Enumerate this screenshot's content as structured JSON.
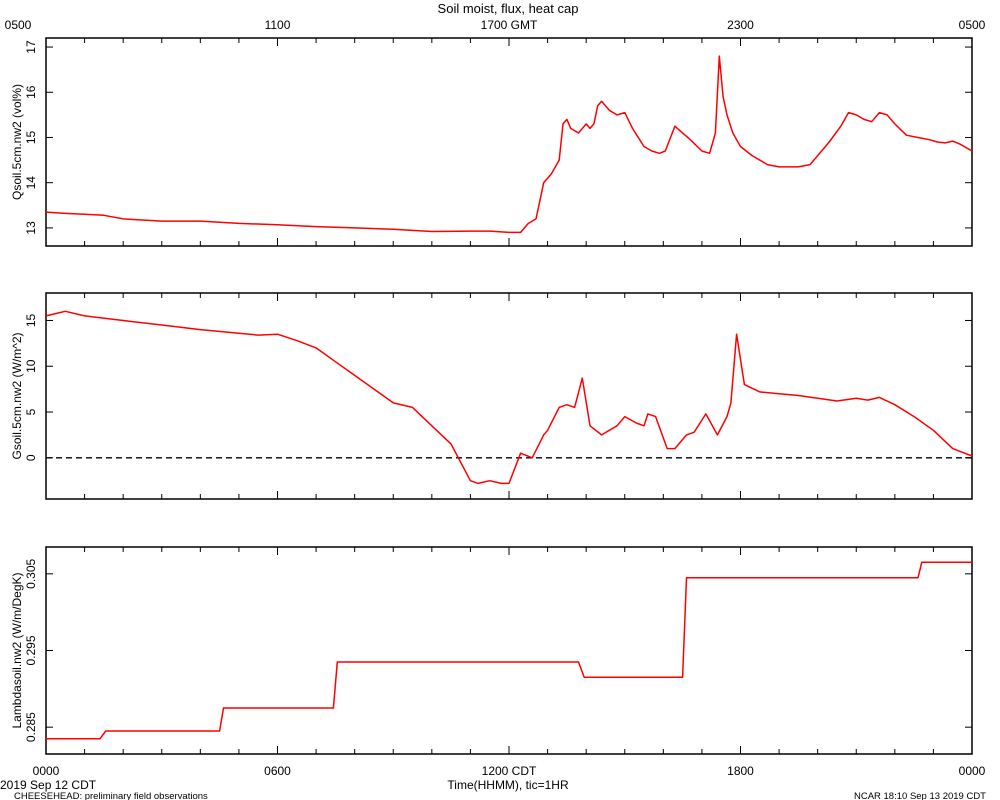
{
  "title": "Soil moist, flux, heat cap",
  "top_axis_ticks": [
    "0500",
    "1100",
    "1700 GMT",
    "2300",
    "0500"
  ],
  "bottom_axis_ticks": [
    "0000",
    "0600",
    "1200 CDT",
    "1800",
    "0000"
  ],
  "xlabel": "Time(HHMM), tic=1HR",
  "date_label": "2019 Sep 12 CDT",
  "footer_left": "CHEESEHEAD: preliminary field observations",
  "footer_right": "NCAR 18:10 Sep 13 2019 CDT",
  "colors": {
    "series": "#ff0000",
    "axes": "#000000",
    "zero_line": "#000000"
  },
  "chart_data": [
    {
      "type": "line",
      "ylabel": "Qsoil.5cm.nw2 (vol%)",
      "x_unit": "hours since 0000 CDT",
      "xlim": [
        0,
        24
      ],
      "ylim": [
        12.6,
        17.2
      ],
      "yticks": [
        "13",
        "14",
        "15",
        "16",
        "17"
      ],
      "ytick_values": [
        13,
        14,
        15,
        16,
        17
      ],
      "series": [
        {
          "x": [
            0.0,
            0.5,
            1.0,
            1.5,
            2.0,
            3.0,
            4.0,
            5.0,
            6.0,
            7.0,
            8.0,
            9.0,
            10.0,
            11.0,
            11.5,
            12.0,
            12.3,
            12.5,
            12.7,
            12.9,
            13.1,
            13.3,
            13.4,
            13.5,
            13.6,
            13.8,
            14.0,
            14.1,
            14.2,
            14.3,
            14.4,
            14.6,
            14.8,
            15.0,
            15.2,
            15.5,
            15.7,
            15.9,
            16.05,
            16.3,
            16.7,
            17.0,
            17.2,
            17.35,
            17.45,
            17.55,
            17.65,
            17.8,
            18.0,
            18.3,
            18.7,
            19.0,
            19.5,
            19.8,
            20.0,
            20.3,
            20.6,
            20.8,
            21.0,
            21.2,
            21.4,
            21.6,
            21.8,
            22.0,
            22.3,
            22.6,
            22.9,
            23.1,
            23.3,
            23.5,
            23.7,
            24.0
          ],
          "y": [
            13.35,
            13.32,
            13.3,
            13.28,
            13.2,
            13.15,
            13.15,
            13.1,
            13.07,
            13.03,
            13.0,
            12.97,
            12.92,
            12.93,
            12.93,
            12.9,
            12.9,
            13.1,
            13.2,
            14.0,
            14.2,
            14.5,
            15.3,
            15.4,
            15.2,
            15.1,
            15.3,
            15.2,
            15.3,
            15.7,
            15.8,
            15.6,
            15.5,
            15.55,
            15.2,
            14.8,
            14.7,
            14.65,
            14.7,
            15.25,
            14.95,
            14.7,
            14.65,
            15.1,
            16.8,
            15.9,
            15.5,
            15.1,
            14.8,
            14.6,
            14.4,
            14.35,
            14.35,
            14.4,
            14.6,
            14.9,
            15.25,
            15.55,
            15.5,
            15.4,
            15.35,
            15.55,
            15.5,
            15.3,
            15.05,
            15.0,
            14.95,
            14.9,
            14.88,
            14.92,
            14.85,
            14.7
          ]
        }
      ]
    },
    {
      "type": "line",
      "ylabel": "Gsoil.5cm.nw2 (W/m^2)",
      "x_unit": "hours since 0000 CDT",
      "xlim": [
        0,
        24
      ],
      "ylim": [
        -4.5,
        18
      ],
      "yticks": [
        "0",
        "5",
        "10",
        "15"
      ],
      "ytick_values": [
        0,
        5,
        10,
        15
      ],
      "zero_line": true,
      "series": [
        {
          "x": [
            0.0,
            0.3,
            0.5,
            1.0,
            2.0,
            3.0,
            4.0,
            5.0,
            5.5,
            6.0,
            6.5,
            7.0,
            7.5,
            8.0,
            8.5,
            9.0,
            9.5,
            10.0,
            10.5,
            11.0,
            11.2,
            11.5,
            11.8,
            12.0,
            12.3,
            12.6,
            12.9,
            13.0,
            13.3,
            13.5,
            13.7,
            13.9,
            14.1,
            14.4,
            14.8,
            15.0,
            15.3,
            15.5,
            15.6,
            15.8,
            16.1,
            16.3,
            16.6,
            16.8,
            17.1,
            17.4,
            17.65,
            17.75,
            17.9,
            18.1,
            18.5,
            19.0,
            19.5,
            20.0,
            20.5,
            21.0,
            21.3,
            21.6,
            22.0,
            22.5,
            23.0,
            23.5,
            24.0
          ],
          "y": [
            15.5,
            15.8,
            16.0,
            15.5,
            15.0,
            14.5,
            14.0,
            13.6,
            13.4,
            13.5,
            12.8,
            12.0,
            10.5,
            9.0,
            7.5,
            6.0,
            5.5,
            3.5,
            1.5,
            -2.5,
            -2.8,
            -2.5,
            -2.8,
            -2.8,
            0.5,
            0.0,
            2.5,
            3.0,
            5.5,
            5.8,
            5.5,
            8.7,
            3.5,
            2.5,
            3.5,
            4.5,
            3.8,
            3.5,
            4.8,
            4.5,
            1.0,
            1.0,
            2.5,
            2.8,
            4.8,
            2.5,
            4.5,
            6.0,
            13.5,
            8.0,
            7.2,
            7.0,
            6.8,
            6.5,
            6.2,
            6.5,
            6.3,
            6.6,
            5.8,
            4.5,
            3.0,
            1.0,
            0.2
          ]
        }
      ]
    },
    {
      "type": "line",
      "ylabel": "Lambdasoil.nw2 (W/m/DegK)",
      "x_unit": "hours since 0000 CDT",
      "xlim": [
        0,
        24
      ],
      "ylim": [
        0.2815,
        0.3085
      ],
      "yticks": [
        "0.285",
        "0.295",
        "0.305"
      ],
      "ytick_values": [
        0.285,
        0.295,
        0.305
      ],
      "series": [
        {
          "x": [
            0.0,
            1.4,
            1.55,
            4.5,
            4.6,
            7.45,
            7.55,
            13.8,
            13.95,
            16.5,
            16.6,
            22.6,
            22.7,
            24.0
          ],
          "y": [
            0.2835,
            0.2835,
            0.2845,
            0.2845,
            0.2875,
            0.2875,
            0.2935,
            0.2935,
            0.2915,
            0.2915,
            0.3045,
            0.3045,
            0.3065,
            0.3065
          ]
        }
      ]
    }
  ]
}
